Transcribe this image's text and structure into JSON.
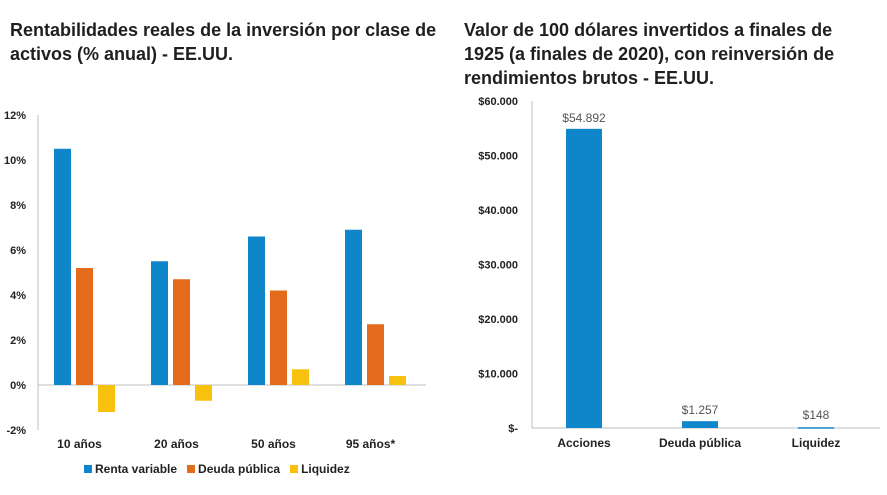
{
  "colors": {
    "renta": "#0f86c9",
    "deuda": "#e46a1c",
    "liquidez": "#f8c10e",
    "axis": "#bfbfbf",
    "single": "#0f86c9"
  },
  "chart_data": [
    {
      "type": "bar",
      "title": "Rentabilidades reales de la inversión por clase de activos (% anual) - EE.UU.",
      "categories": [
        "10 años",
        "20 años",
        "50 años",
        "95 años*"
      ],
      "series": [
        {
          "name": "Renta variable",
          "values": [
            10.5,
            5.5,
            6.6,
            6.9
          ]
        },
        {
          "name": "Deuda pública",
          "values": [
            5.2,
            4.7,
            4.2,
            2.7
          ]
        },
        {
          "name": "Liquidez",
          "values": [
            -1.2,
            -0.7,
            0.7,
            0.4
          ]
        }
      ],
      "ylim": [
        -2,
        12
      ],
      "yticks": [
        "-2%",
        "0%",
        "2%",
        "4%",
        "6%",
        "8%",
        "10%",
        "12%"
      ],
      "legend": "bottom"
    },
    {
      "type": "bar",
      "title": "Valor de 100 dólares invertidos a finales de 1925 (a finales de 2020), con reinversión de rendimientos brutos - EE.UU.",
      "categories": [
        "Acciones",
        "Deuda pública",
        "Liquidez"
      ],
      "values": [
        54892,
        1257,
        148
      ],
      "value_labels": [
        "$54.892",
        "$1.257",
        "$148"
      ],
      "ylim": [
        0,
        60000
      ],
      "yticks": [
        "$-",
        "$10.000",
        "$20.000",
        "$30.000",
        "$40.000",
        "$50.000",
        "$60.000"
      ]
    }
  ]
}
